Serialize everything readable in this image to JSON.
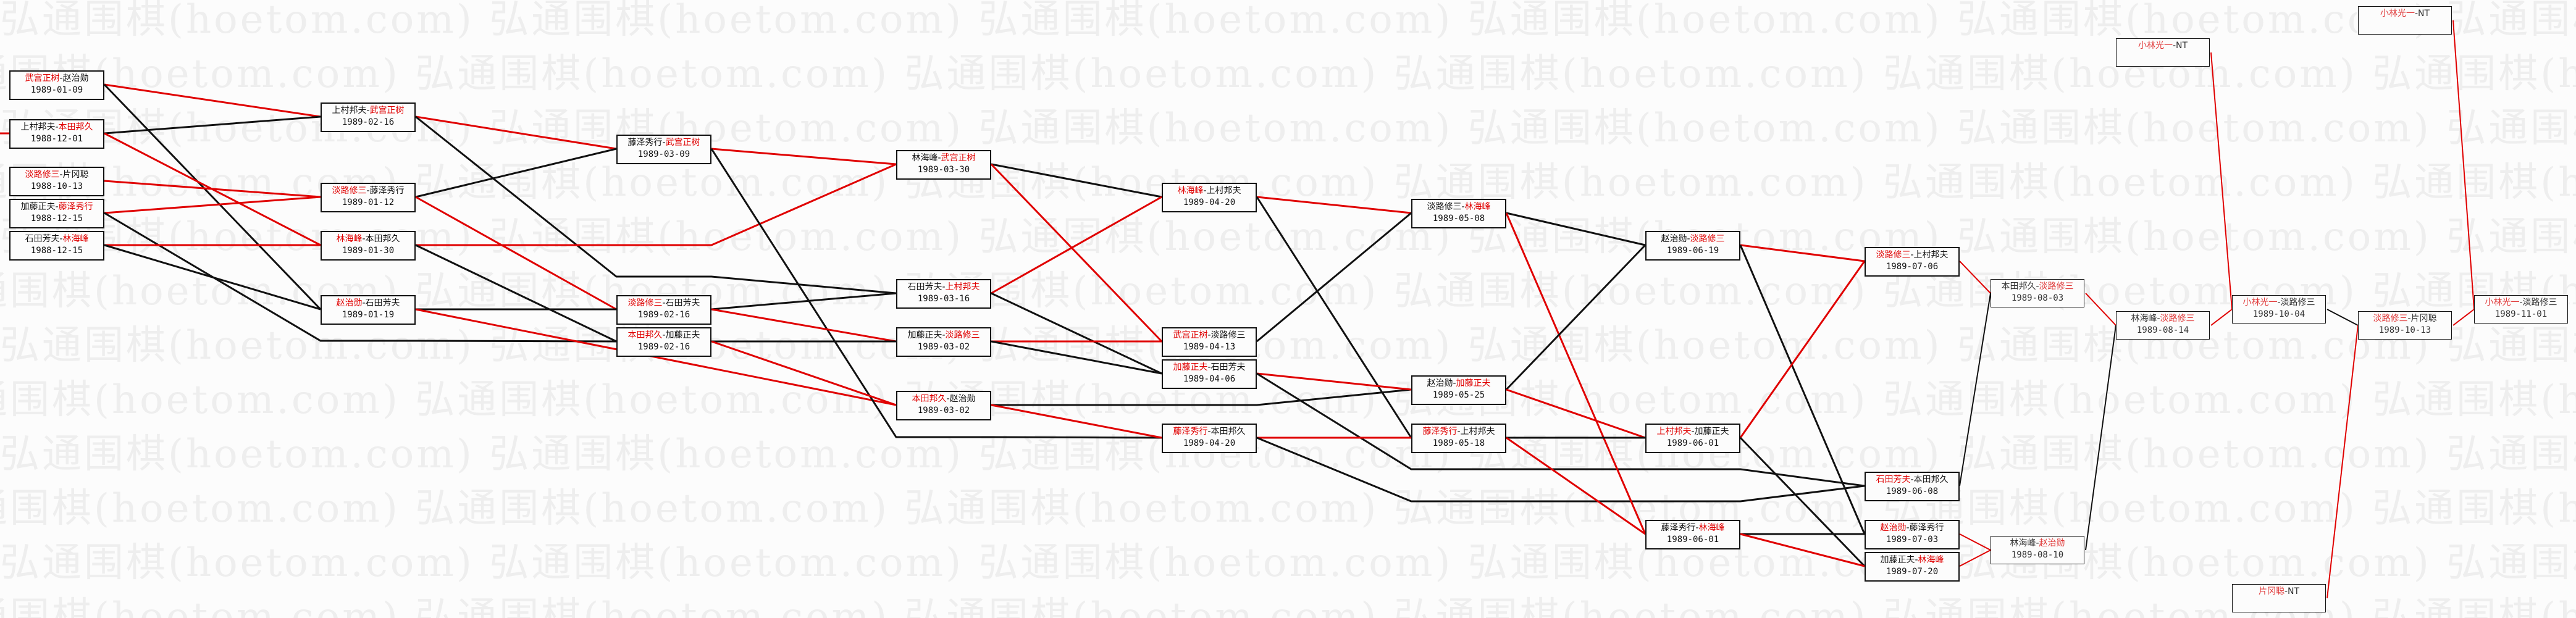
{
  "watermark": "弘通围棋(hoetom.com) ",
  "colors": {
    "winner": "#e00000",
    "winner_line": "#e00000",
    "loser_line": "#111111",
    "box_border": "#111111"
  },
  "matches": [
    {
      "id": "m1",
      "p1": "武宫正树",
      "p2": "赵治勋",
      "winner": 1,
      "date": "1989-01-09"
    },
    {
      "id": "m2",
      "p1": "上村邦夫",
      "p2": "本田邦久",
      "winner": 2,
      "date": "1988-12-01"
    },
    {
      "id": "m3",
      "p1": "淡路修三",
      "p2": "片冈聪",
      "winner": 1,
      "date": "1988-10-13"
    },
    {
      "id": "m4",
      "p1": "加藤正夫",
      "p2": "藤泽秀行",
      "winner": 2,
      "date": "1988-12-15"
    },
    {
      "id": "m5",
      "p1": "石田芳夫",
      "p2": "林海峰",
      "winner": 2,
      "date": "1988-12-15"
    },
    {
      "id": "m6",
      "p1": "上村邦夫",
      "p2": "武宫正树",
      "winner": 2,
      "date": "1989-02-16"
    },
    {
      "id": "m7",
      "p1": "淡路修三",
      "p2": "藤泽秀行",
      "winner": 1,
      "date": "1989-01-12"
    },
    {
      "id": "m8",
      "p1": "林海峰",
      "p2": "本田邦久",
      "winner": 1,
      "date": "1989-01-30"
    },
    {
      "id": "m9",
      "p1": "赵治勋",
      "p2": "石田芳夫",
      "winner": 1,
      "date": "1989-01-19"
    },
    {
      "id": "m10",
      "p1": "藤泽秀行",
      "p2": "武宫正树",
      "winner": 2,
      "date": "1989-03-09"
    },
    {
      "id": "m11",
      "p1": "淡路修三",
      "p2": "石田芳夫",
      "winner": 1,
      "date": "1989-02-16"
    },
    {
      "id": "m12",
      "p1": "本田邦久",
      "p2": "加藤正夫",
      "winner": 1,
      "date": "1989-02-16"
    },
    {
      "id": "m13",
      "p1": "林海峰",
      "p2": "武宫正树",
      "winner": 2,
      "date": "1989-03-30"
    },
    {
      "id": "m14",
      "p1": "石田芳夫",
      "p2": "上村邦夫",
      "winner": 2,
      "date": "1989-03-16"
    },
    {
      "id": "m15",
      "p1": "加藤正夫",
      "p2": "淡路修三",
      "winner": 2,
      "date": "1989-03-02"
    },
    {
      "id": "m16",
      "p1": "本田邦久",
      "p2": "赵治勋",
      "winner": 1,
      "date": "1989-03-02"
    },
    {
      "id": "m17",
      "p1": "林海峰",
      "p2": "上村邦夫",
      "winner": 1,
      "date": "1989-04-20"
    },
    {
      "id": "m18",
      "p1": "武宫正树",
      "p2": "淡路修三",
      "winner": 1,
      "date": "1989-04-13"
    },
    {
      "id": "m19",
      "p1": "加藤正夫",
      "p2": "石田芳夫",
      "winner": 1,
      "date": "1989-04-06"
    },
    {
      "id": "m20",
      "p1": "藤泽秀行",
      "p2": "本田邦久",
      "winner": 1,
      "date": "1989-04-20"
    },
    {
      "id": "m21",
      "p1": "淡路修三",
      "p2": "林海峰",
      "winner": 2,
      "date": "1989-05-08"
    },
    {
      "id": "m22",
      "p1": "赵治勋",
      "p2": "加藤正夫",
      "winner": 2,
      "date": "1989-05-25"
    },
    {
      "id": "m23",
      "p1": "藤泽秀行",
      "p2": "上村邦夫",
      "winner": 1,
      "date": "1989-05-18"
    },
    {
      "id": "m24",
      "p1": "赵治勋",
      "p2": "淡路修三",
      "winner": 2,
      "date": "1989-06-19"
    },
    {
      "id": "m25",
      "p1": "上村邦夫",
      "p2": "加藤正夫",
      "winner": 1,
      "date": "1989-06-01"
    },
    {
      "id": "m26",
      "p1": "藤泽秀行",
      "p2": "林海峰",
      "winner": 2,
      "date": "1989-06-01"
    },
    {
      "id": "m27",
      "p1": "淡路修三",
      "p2": "上村邦夫",
      "winner": 1,
      "date": "1989-07-06"
    },
    {
      "id": "m28",
      "p1": "石田芳夫",
      "p2": "本田邦久",
      "winner": 1,
      "date": "1989-06-08"
    },
    {
      "id": "m29",
      "p1": "赵治勋",
      "p2": "藤泽秀行",
      "winner": 1,
      "date": "1989-07-03"
    },
    {
      "id": "m30",
      "p1": "加藤正夫",
      "p2": "林海峰",
      "winner": 2,
      "date": "1989-07-20"
    },
    {
      "id": "m31",
      "p1": "本田邦久",
      "p2": "淡路修三",
      "winner": 2,
      "date": "1989-08-03"
    },
    {
      "id": "m32",
      "p1": "林海峰",
      "p2": "赵治勋",
      "winner": 2,
      "date": "1989-08-10"
    },
    {
      "id": "m33",
      "p1": "林海峰",
      "p2": "淡路修三",
      "winner": 2,
      "date": "1989-08-14"
    },
    {
      "id": "m34",
      "p1": "小林光一",
      "p2": "NT",
      "winner": 1,
      "date": ""
    },
    {
      "id": "m35",
      "p1": "小林光一",
      "p2": "淡路修三",
      "winner": 1,
      "date": "1989-10-04"
    },
    {
      "id": "m36",
      "p1": "片冈聪",
      "p2": "NT",
      "winner": 1,
      "date": ""
    },
    {
      "id": "m37",
      "p1": "淡路修三",
      "p2": "片冈聪",
      "winner": 1,
      "date": "1989-10-13"
    },
    {
      "id": "m38",
      "p1": "小林光一",
      "p2": "NT",
      "winner": 1,
      "date": ""
    },
    {
      "id": "m39",
      "p1": "小林光一",
      "p2": "淡路修三",
      "winner": 1,
      "date": "1989-11-01"
    }
  ],
  "edges": [
    {
      "from": "m1",
      "to": "m6",
      "type": "winner"
    },
    {
      "from": "m1",
      "to": "m9",
      "type": "loser"
    },
    {
      "from": "m2",
      "to": "m6",
      "type": "loser"
    },
    {
      "from": "m2",
      "to": "m8",
      "type": "winner"
    },
    {
      "from": "m3",
      "to": "m7",
      "type": "winner"
    },
    {
      "from": "m4",
      "to": "m7",
      "type": "winner"
    },
    {
      "from": "m4",
      "to": "m12",
      "type": "loser"
    },
    {
      "from": "m5",
      "to": "m8",
      "type": "winner"
    },
    {
      "from": "m5",
      "to": "m9",
      "type": "loser"
    },
    {
      "from": "m6",
      "to": "m10",
      "type": "winner"
    },
    {
      "from": "m6",
      "to": "m14",
      "type": "loser"
    },
    {
      "from": "m7",
      "to": "m10",
      "type": "loser"
    },
    {
      "from": "m7",
      "to": "m11",
      "type": "winner"
    },
    {
      "from": "m8",
      "to": "m13",
      "type": "winner"
    },
    {
      "from": "m8",
      "to": "m12",
      "type": "loser"
    },
    {
      "from": "m9",
      "to": "m11",
      "type": "loser"
    },
    {
      "from": "m9",
      "to": "m16",
      "type": "winner"
    },
    {
      "from": "m10",
      "to": "m13",
      "type": "winner"
    },
    {
      "from": "m10",
      "to": "m20",
      "type": "loser"
    },
    {
      "from": "m11",
      "to": "m14",
      "type": "loser"
    },
    {
      "from": "m11",
      "to": "m15",
      "type": "winner"
    },
    {
      "from": "m12",
      "to": "m15",
      "type": "loser"
    },
    {
      "from": "m12",
      "to": "m16",
      "type": "winner"
    },
    {
      "from": "m13",
      "to": "m17",
      "type": "loser"
    },
    {
      "from": "m13",
      "to": "m18",
      "type": "winner"
    },
    {
      "from": "m14",
      "to": "m17",
      "type": "winner"
    },
    {
      "from": "m14",
      "to": "m19",
      "type": "loser"
    },
    {
      "from": "m15",
      "to": "m18",
      "type": "winner"
    },
    {
      "from": "m15",
      "to": "m19",
      "type": "loser"
    },
    {
      "from": "m16",
      "to": "m22",
      "type": "loser"
    },
    {
      "from": "m16",
      "to": "m20",
      "type": "winner"
    },
    {
      "from": "m17",
      "to": "m21",
      "type": "winner"
    },
    {
      "from": "m17",
      "to": "m23",
      "type": "loser"
    },
    {
      "from": "m18",
      "to": "m21",
      "type": "loser"
    },
    {
      "from": "m19",
      "to": "m22",
      "type": "winner"
    },
    {
      "from": "m19",
      "to": "m28",
      "type": "loser"
    },
    {
      "from": "m20",
      "to": "m23",
      "type": "winner"
    },
    {
      "from": "m20",
      "to": "m28",
      "type": "loser"
    },
    {
      "from": "m21",
      "to": "m24",
      "type": "loser"
    },
    {
      "from": "m21",
      "to": "m26",
      "type": "winner"
    },
    {
      "from": "m22",
      "to": "m24",
      "type": "loser"
    },
    {
      "from": "m22",
      "to": "m25",
      "type": "winner"
    },
    {
      "from": "m23",
      "to": "m25",
      "type": "loser"
    },
    {
      "from": "m23",
      "to": "m26",
      "type": "winner"
    },
    {
      "from": "m24",
      "to": "m27",
      "type": "winner"
    },
    {
      "from": "m24",
      "to": "m29",
      "type": "loser"
    },
    {
      "from": "m25",
      "to": "m27",
      "type": "winner"
    },
    {
      "from": "m25",
      "to": "m30",
      "type": "loser"
    },
    {
      "from": "m26",
      "to": "m29",
      "type": "loser"
    },
    {
      "from": "m26",
      "to": "m30",
      "type": "winner"
    },
    {
      "from": "m27",
      "to": "m31",
      "type": "winner"
    },
    {
      "from": "m28",
      "to": "m31",
      "type": "loser"
    },
    {
      "from": "m29",
      "to": "m32",
      "type": "winner"
    },
    {
      "from": "m30",
      "to": "m32",
      "type": "winner"
    },
    {
      "from": "m31",
      "to": "m33",
      "type": "winner"
    },
    {
      "from": "m32",
      "to": "m33",
      "type": "loser"
    },
    {
      "from": "m33",
      "to": "m35",
      "type": "winner"
    },
    {
      "from": "m34",
      "to": "m35",
      "type": "winner"
    },
    {
      "from": "m35",
      "to": "m37",
      "type": "loser"
    },
    {
      "from": "m36",
      "to": "m37",
      "type": "winner"
    },
    {
      "from": "m37",
      "to": "m39",
      "type": "winner"
    },
    {
      "from": "m38",
      "to": "m39",
      "type": "winner"
    }
  ]
}
